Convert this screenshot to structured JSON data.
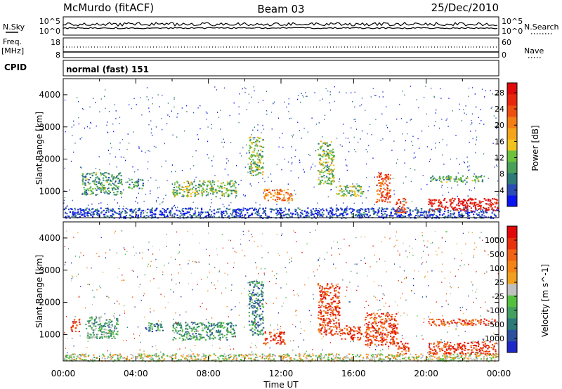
{
  "header": {
    "radar_title": "McMurdo (fitACF)",
    "beam": "Beam 03",
    "date": "25/Dec/2010"
  },
  "top_panels": {
    "nsky_label": "N.Sky",
    "nsearch_label": "N.Search",
    "noise_ticks": [
      "10^5",
      "10^0"
    ],
    "freq_label_1": "Freq.",
    "freq_label_2": "[MHz]",
    "freq_ticks": [
      "18",
      "8"
    ],
    "nave_label": "Nave",
    "nave_ticks": [
      "60",
      "0"
    ],
    "cpid_label": "CPID",
    "cpid_value": "normal (fast) 151"
  },
  "chart_data": [
    {
      "type": "heatmap",
      "name": "Power",
      "ylabel": "Slant Range [km]",
      "xlabel": "",
      "yticks": [
        1000,
        2000,
        3000,
        4000
      ],
      "ylim": [
        180,
        4500
      ],
      "xlim": [
        0,
        24
      ],
      "colorbar": {
        "label": "Power [dB]",
        "ticks": [
          "4",
          "8",
          "12",
          "16",
          "20",
          "24",
          "28"
        ],
        "colors": [
          "#0a14f0",
          "#2a4cb4",
          "#2d7a78",
          "#4aa05a",
          "#6cc23c",
          "#f0c21e",
          "#f4a41a",
          "#f47e16",
          "#ee5012",
          "#e8280e",
          "#e00a0a"
        ]
      },
      "regions": [
        {
          "t0": 0.0,
          "t1": 24.0,
          "r0": 180,
          "r1": 500,
          "level": 0.1
        },
        {
          "t0": 1.0,
          "t1": 3.2,
          "r0": 900,
          "r1": 1600,
          "level": 0.3
        },
        {
          "t0": 3.5,
          "t1": 4.4,
          "r0": 1100,
          "r1": 1400,
          "level": 0.3
        },
        {
          "t0": 6.0,
          "t1": 9.5,
          "r0": 850,
          "r1": 1350,
          "level": 0.4
        },
        {
          "t0": 10.2,
          "t1": 11.0,
          "r0": 1500,
          "r1": 2700,
          "level": 0.4
        },
        {
          "t0": 11.0,
          "t1": 12.6,
          "r0": 700,
          "r1": 1100,
          "level": 0.7
        },
        {
          "t0": 14.0,
          "t1": 14.9,
          "r0": 1200,
          "r1": 2600,
          "level": 0.4
        },
        {
          "t0": 15.0,
          "t1": 16.5,
          "r0": 850,
          "r1": 1200,
          "level": 0.4
        },
        {
          "t0": 17.2,
          "t1": 18.0,
          "r0": 650,
          "r1": 1600,
          "level": 0.8
        },
        {
          "t0": 18.3,
          "t1": 18.9,
          "r0": 350,
          "r1": 800,
          "level": 0.8
        },
        {
          "t0": 20.2,
          "t1": 23.2,
          "r0": 1300,
          "r1": 1500,
          "level": 0.35
        },
        {
          "t0": 20.1,
          "t1": 23.9,
          "r0": 400,
          "r1": 800,
          "level": 0.95
        }
      ]
    },
    {
      "type": "heatmap",
      "name": "Velocity",
      "ylabel": "Slant Range [km]",
      "xlabel": "Time UT",
      "yticks": [
        1000,
        2000,
        3000,
        4000
      ],
      "ylim": [
        180,
        4500
      ],
      "xlim": [
        0,
        24
      ],
      "xticks": [
        "00:00",
        "04:00",
        "08:00",
        "12:00",
        "16:00",
        "20:00",
        "00:00"
      ],
      "colorbar": {
        "label": "Velocity [m s^-1]",
        "ticks": [
          "1000",
          "500",
          "100",
          "25",
          "-25",
          "-100",
          "-500",
          "-1000"
        ],
        "colors": [
          "#1e28c8",
          "#2d509e",
          "#2d7a78",
          "#45a060",
          "#55c040",
          "#c0c0c0",
          "#f0a020",
          "#f48418",
          "#f06414",
          "#e8320e",
          "#e00a0a"
        ]
      },
      "regions": [
        {
          "t0": 0.0,
          "t1": 24.0,
          "r0": 180,
          "r1": 420,
          "level": 0.5
        },
        {
          "t0": 0.4,
          "t1": 0.9,
          "r0": 1100,
          "r1": 1500,
          "level": 0.8
        },
        {
          "t0": 1.2,
          "t1": 3.0,
          "r0": 900,
          "r1": 1600,
          "level": 0.35
        },
        {
          "t0": 4.5,
          "t1": 5.5,
          "r0": 1100,
          "r1": 1400,
          "level": 0.25
        },
        {
          "t0": 6.0,
          "t1": 9.5,
          "r0": 850,
          "r1": 1400,
          "level": 0.3
        },
        {
          "t0": 10.2,
          "t1": 11.0,
          "r0": 1000,
          "r1": 2700,
          "level": 0.25
        },
        {
          "t0": 11.0,
          "t1": 12.2,
          "r0": 700,
          "r1": 1100,
          "level": 0.85
        },
        {
          "t0": 14.0,
          "t1": 15.2,
          "r0": 1000,
          "r1": 2600,
          "level": 0.85
        },
        {
          "t0": 15.2,
          "t1": 16.4,
          "r0": 850,
          "r1": 1300,
          "level": 0.85
        },
        {
          "t0": 16.6,
          "t1": 18.4,
          "r0": 650,
          "r1": 1700,
          "level": 0.85
        },
        {
          "t0": 18.4,
          "t1": 19.0,
          "r0": 400,
          "r1": 800,
          "level": 0.85
        },
        {
          "t0": 20.1,
          "t1": 23.8,
          "r0": 1300,
          "r1": 1500,
          "level": 0.8
        },
        {
          "t0": 20.1,
          "t1": 23.9,
          "r0": 400,
          "r1": 800,
          "level": 0.85
        },
        {
          "t0": 20.3,
          "t1": 21.6,
          "r0": 180,
          "r1": 350,
          "level": 0.45
        }
      ]
    }
  ]
}
